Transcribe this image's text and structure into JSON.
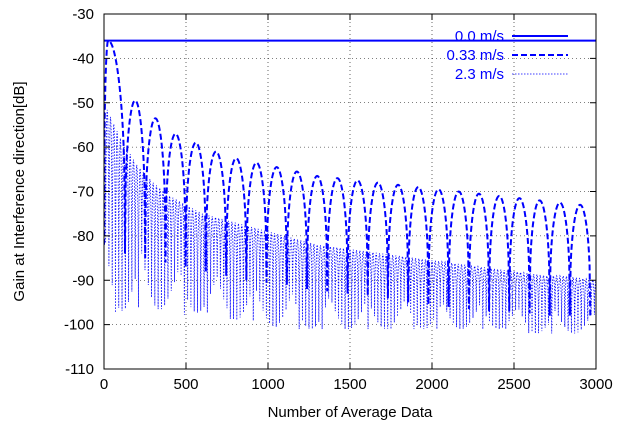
{
  "chart_data": {
    "type": "line",
    "title": "",
    "xlabel": "Number of Average Data",
    "ylabel": "Gain at Interference direction[dB]",
    "xlim": [
      0,
      3000
    ],
    "ylim": [
      -110,
      -30
    ],
    "xticks": [
      0,
      500,
      1000,
      1500,
      2000,
      2500,
      3000
    ],
    "yticks": [
      -110,
      -100,
      -90,
      -80,
      -70,
      -60,
      -50,
      -40,
      -30
    ],
    "grid": true,
    "legend_position": "top-right",
    "line_color": "#0000ff",
    "series": [
      {
        "name": "0.0 m/s",
        "style": "solid",
        "x": [
          0,
          3000
        ],
        "y": [
          -36.0,
          -36.0
        ]
      },
      {
        "name": "0.33 m/s",
        "style": "dashed",
        "lobe_centers": [
          25,
          190,
          313,
          436,
          560,
          683,
          806,
          930,
          1053,
          1176,
          1300,
          1423,
          1546,
          1670,
          1793,
          1916,
          2040,
          2163,
          2286,
          2410,
          2533,
          2656,
          2780,
          2903
        ],
        "lobe_peaks": [
          -36.0,
          -49.5,
          -53.5,
          -57.0,
          -59.0,
          -61.0,
          -62.5,
          -63.5,
          -64.5,
          -65.5,
          -66.5,
          -67.0,
          -67.5,
          -68.0,
          -68.5,
          -69.0,
          -69.5,
          -70.0,
          -70.5,
          -71.0,
          -71.5,
          -72.0,
          -72.5,
          -73.0
        ],
        "null_positions": [
          128,
          251,
          375,
          498,
          621,
          745,
          868,
          991,
          1115,
          1238,
          1361,
          1485,
          1608,
          1731,
          1855,
          1978,
          2101,
          2225,
          2348,
          2471,
          2595,
          2718,
          2841,
          2965
        ],
        "floor_db": [
          -82,
          -84,
          -85,
          -86,
          -87,
          -88,
          -89,
          -90,
          -90.5,
          -91,
          -92,
          -92.5,
          -93,
          -93.5,
          -94,
          -95,
          -95.5,
          -96,
          -96.5,
          -97,
          -97,
          -97.5,
          -98,
          -98
        ]
      },
      {
        "name": "2.3 m/s",
        "style": "dotted",
        "x": [
          0,
          100,
          200,
          300,
          400,
          500,
          600,
          700,
          800,
          900,
          1000,
          1100,
          1200,
          1300,
          1400,
          1500,
          1600,
          1700,
          1800,
          1900,
          2000,
          2100,
          2200,
          2300,
          2400,
          2500,
          2600,
          2700,
          2800,
          2900,
          3000
        ],
        "peak_envelope": [
          -50,
          -58,
          -64,
          -68,
          -71,
          -73,
          -75,
          -76,
          -77,
          -78,
          -79,
          -80,
          -81,
          -82,
          -82.5,
          -83,
          -83.5,
          -84,
          -84.5,
          -85,
          -85.5,
          -86,
          -86.5,
          -87,
          -87.5,
          -88,
          -88.5,
          -89,
          -89,
          -89.5,
          -90
        ],
        "trough_envelope": [
          -98,
          -97,
          -96,
          -97,
          -96,
          -98,
          -97,
          -98,
          -99,
          -99,
          -100,
          -101,
          -101,
          -101,
          -101,
          -101,
          -101,
          -101,
          -101,
          -101,
          -101,
          -101,
          -101,
          -101,
          -101,
          -101,
          -102,
          -102,
          -102,
          -102,
          -102
        ],
        "oscillation_period": 20
      }
    ]
  }
}
